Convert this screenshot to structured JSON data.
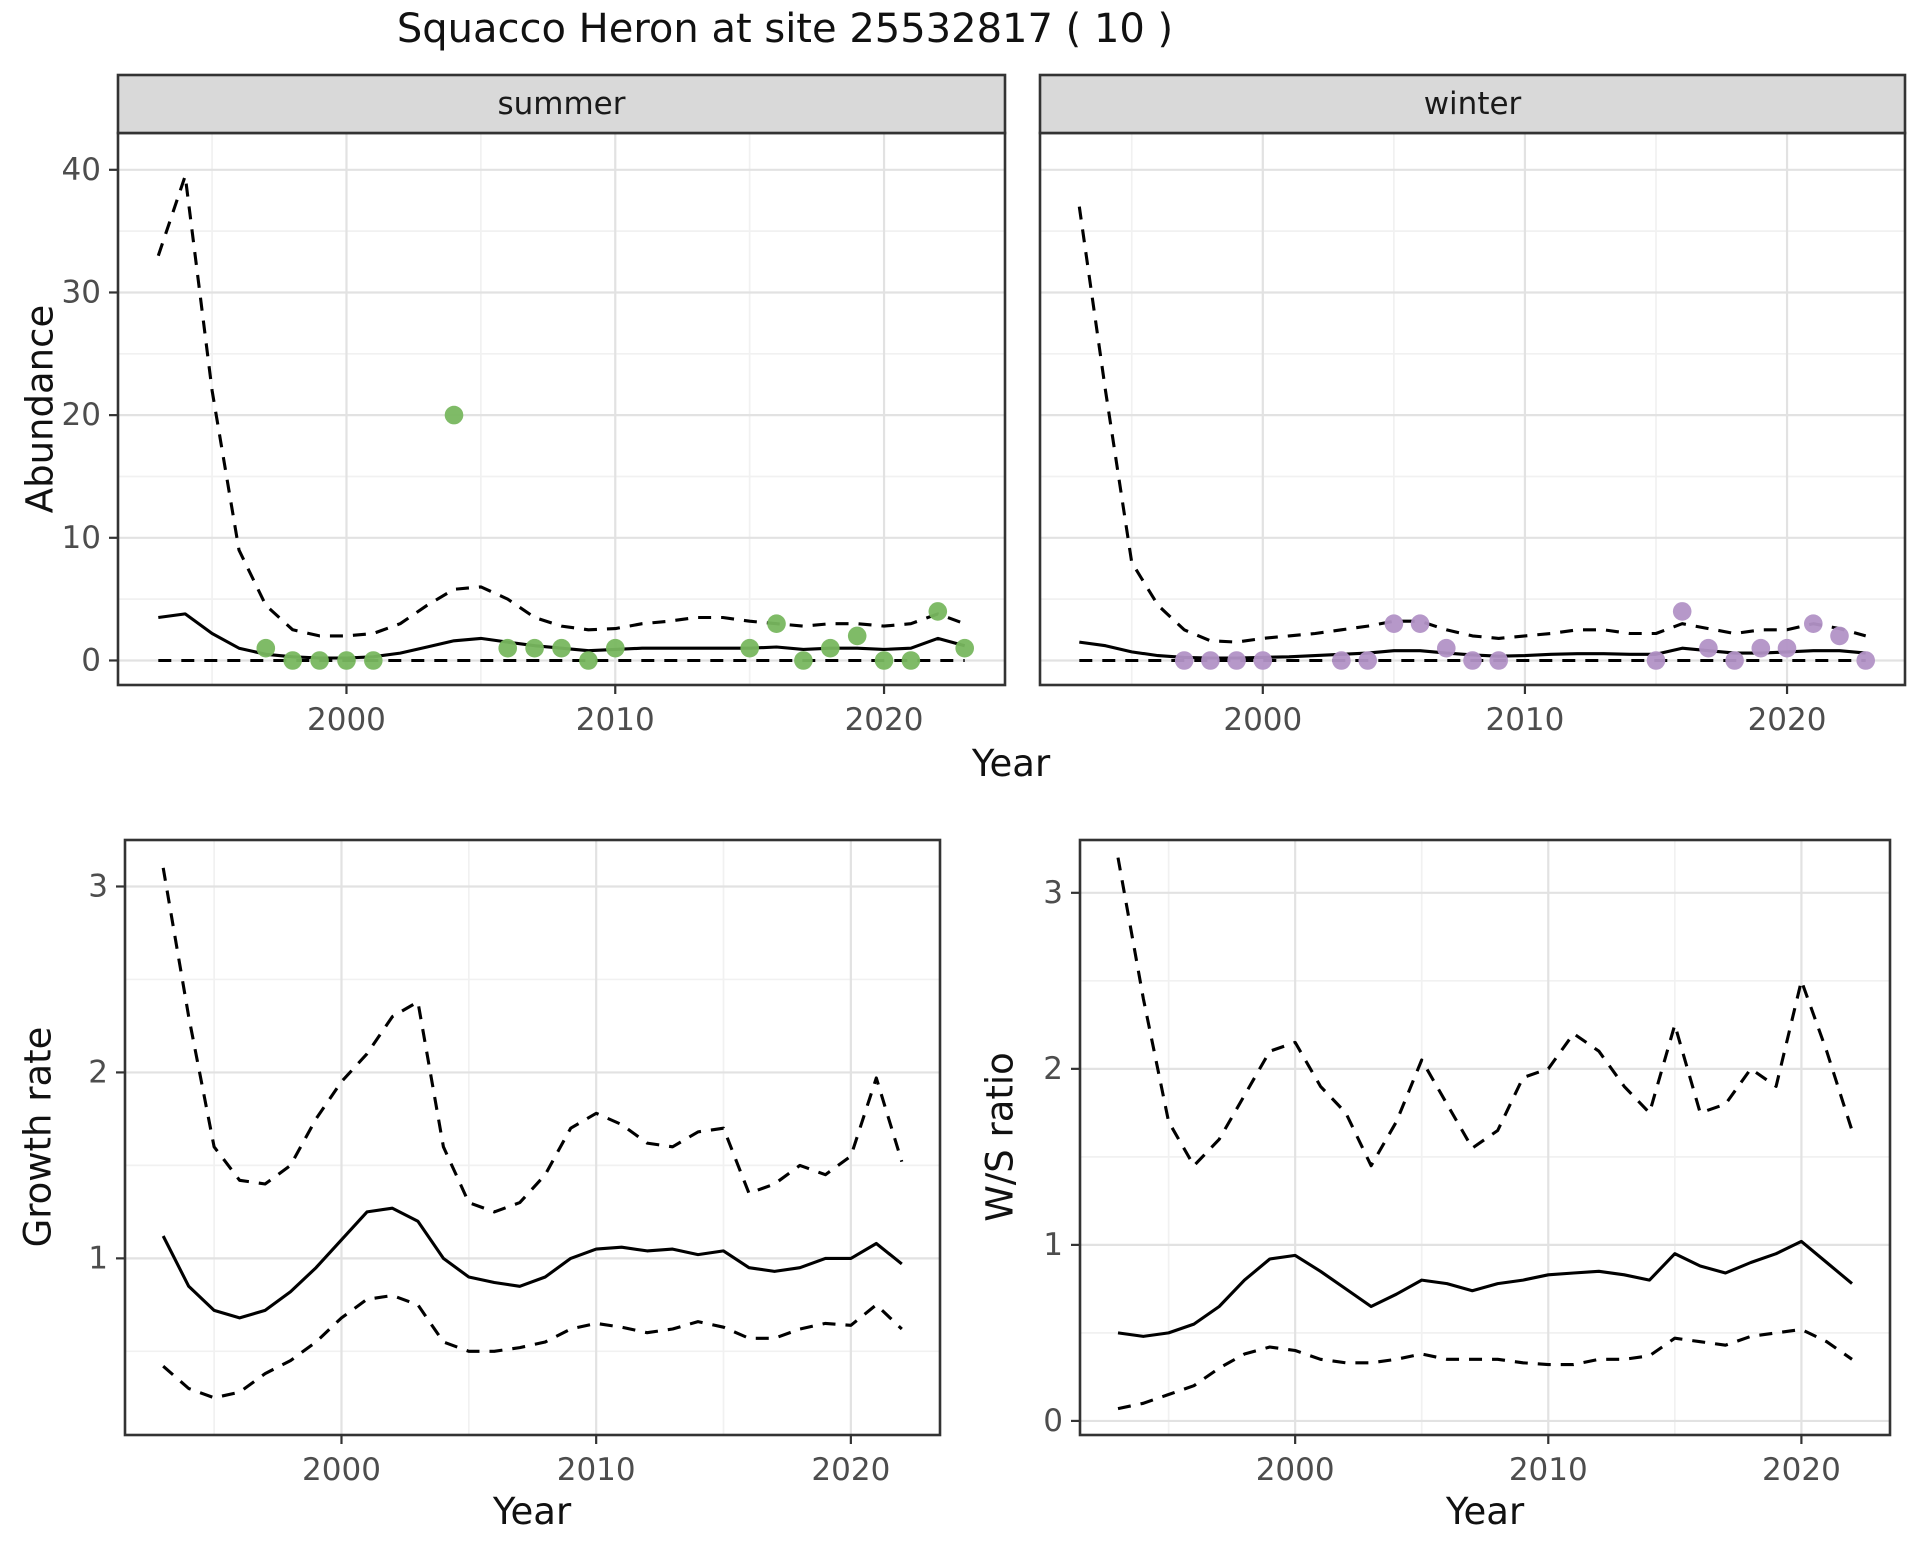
{
  "labels": {
    "title": "Squacco Heron at site 25532817 ( 10 )",
    "xlabel_top": "Year",
    "xlabel_growth": "Year",
    "xlabel_ws": "Year",
    "ylabel_abundance": "Abundance",
    "ylabel_growth": "Growth rate",
    "ylabel_ws": "W/S ratio",
    "facet_summer": "summer",
    "facet_winter": "winter"
  },
  "colors": {
    "summer_point": "#78b75f",
    "winter_point": "#b292c6",
    "line": "#000000",
    "strip_bg": "#d9d9d9",
    "strip_text": "#1a1a1a",
    "panel_border": "#333333",
    "grid_major": "#e2e2e2",
    "grid_minor": "#f1f1f1",
    "tick_text": "#4d4d4d",
    "tick_mark": "#333333"
  },
  "chart_data": [
    {
      "id": "abundance-summer",
      "type": "line",
      "facet_label": "summer",
      "xlabel": "Year",
      "ylabel": "Abundance",
      "xlim": [
        1991.5,
        2024.5
      ],
      "ylim": [
        -2,
        43
      ],
      "xticks": [
        2000,
        2010,
        2020
      ],
      "yticks": [
        0,
        10,
        20,
        30,
        40
      ],
      "xminor": [
        1995,
        2005,
        2015
      ],
      "yminor": [
        5,
        15,
        25,
        35
      ],
      "years": [
        1993,
        1994,
        1995,
        1996,
        1997,
        1998,
        1999,
        2000,
        2001,
        2002,
        2003,
        2004,
        2005,
        2006,
        2007,
        2008,
        2009,
        2010,
        2011,
        2012,
        2013,
        2014,
        2015,
        2016,
        2017,
        2018,
        2019,
        2020,
        2021,
        2022,
        2023
      ],
      "series": [
        {
          "name": "upper_ci",
          "style": "dashed",
          "values": [
            33,
            39.5,
            22,
            9,
            4.5,
            2.5,
            2,
            2,
            2.2,
            3,
            4.5,
            5.8,
            6,
            5,
            3.5,
            2.8,
            2.5,
            2.6,
            3,
            3.2,
            3.5,
            3.5,
            3.2,
            3,
            2.8,
            3,
            3,
            2.8,
            3,
            3.8,
            3
          ]
        },
        {
          "name": "lower_ci",
          "style": "dashed",
          "values": [
            0,
            0,
            0,
            0,
            0,
            0,
            0,
            0,
            0,
            0,
            0,
            0,
            0,
            0,
            0,
            0,
            0,
            0,
            0,
            0,
            0,
            0,
            0,
            0,
            0,
            0,
            0,
            0,
            0,
            0,
            0
          ]
        },
        {
          "name": "median",
          "style": "solid",
          "values": [
            3.5,
            3.8,
            2.2,
            1,
            0.5,
            0.3,
            0.2,
            0.2,
            0.3,
            0.6,
            1.1,
            1.6,
            1.8,
            1.5,
            1.2,
            1,
            0.8,
            0.9,
            1,
            1,
            1,
            1,
            1,
            1.1,
            0.9,
            1,
            1,
            0.9,
            1,
            1.8,
            1.2
          ]
        }
      ],
      "points": {
        "color_key": "summer_point",
        "xy": [
          [
            1997,
            1
          ],
          [
            1998,
            0
          ],
          [
            1999,
            0
          ],
          [
            2000,
            0
          ],
          [
            2001,
            0
          ],
          [
            2004,
            20
          ],
          [
            2006,
            1
          ],
          [
            2007,
            1
          ],
          [
            2008,
            1
          ],
          [
            2009,
            0
          ],
          [
            2010,
            1
          ],
          [
            2015,
            1
          ],
          [
            2016,
            3
          ],
          [
            2017,
            0
          ],
          [
            2018,
            1
          ],
          [
            2019,
            2
          ],
          [
            2020,
            0
          ],
          [
            2021,
            0
          ],
          [
            2022,
            4
          ],
          [
            2023,
            1
          ]
        ]
      }
    },
    {
      "id": "abundance-winter",
      "type": "line",
      "facet_label": "winter",
      "xlabel": "Year",
      "ylabel": "",
      "xlim": [
        1991.5,
        2024.5
      ],
      "ylim": [
        -2,
        43
      ],
      "xticks": [
        2000,
        2010,
        2020
      ],
      "yticks": [
        0,
        10,
        20,
        30,
        40
      ],
      "xminor": [
        1995,
        2005,
        2015
      ],
      "yminor": [
        5,
        15,
        25,
        35
      ],
      "years": [
        1993,
        1994,
        1995,
        1996,
        1997,
        1998,
        1999,
        2000,
        2001,
        2002,
        2003,
        2004,
        2005,
        2006,
        2007,
        2008,
        2009,
        2010,
        2011,
        2012,
        2013,
        2014,
        2015,
        2016,
        2017,
        2018,
        2019,
        2020,
        2021,
        2022,
        2023
      ],
      "series": [
        {
          "name": "upper_ci",
          "style": "dashed",
          "values": [
            37,
            22,
            8,
            4.5,
            2.5,
            1.6,
            1.5,
            1.8,
            2,
            2.2,
            2.5,
            2.8,
            3.2,
            3.2,
            2.5,
            2,
            1.8,
            2,
            2.2,
            2.5,
            2.5,
            2.2,
            2.2,
            3,
            2.6,
            2.2,
            2.5,
            2.5,
            3,
            2.6,
            2
          ]
        },
        {
          "name": "lower_ci",
          "style": "dashed",
          "values": [
            0,
            0,
            0,
            0,
            0,
            0,
            0,
            0,
            0,
            0,
            0,
            0,
            0,
            0,
            0,
            0,
            0,
            0,
            0,
            0,
            0,
            0,
            0,
            0,
            0,
            0,
            0,
            0,
            0,
            0,
            0
          ]
        },
        {
          "name": "median",
          "style": "solid",
          "values": [
            1.5,
            1.2,
            0.7,
            0.4,
            0.25,
            0.2,
            0.2,
            0.25,
            0.3,
            0.4,
            0.5,
            0.6,
            0.8,
            0.8,
            0.6,
            0.45,
            0.35,
            0.4,
            0.5,
            0.55,
            0.55,
            0.5,
            0.5,
            1,
            0.8,
            0.6,
            0.6,
            0.7,
            0.8,
            0.8,
            0.6
          ]
        }
      ],
      "points": {
        "color_key": "winter_point",
        "xy": [
          [
            1997,
            0
          ],
          [
            1998,
            0
          ],
          [
            1999,
            0
          ],
          [
            2000,
            0
          ],
          [
            2003,
            0
          ],
          [
            2004,
            0
          ],
          [
            2005,
            3
          ],
          [
            2006,
            3
          ],
          [
            2007,
            1
          ],
          [
            2008,
            0
          ],
          [
            2009,
            0
          ],
          [
            2015,
            0
          ],
          [
            2016,
            4
          ],
          [
            2017,
            1
          ],
          [
            2018,
            0
          ],
          [
            2019,
            1
          ],
          [
            2020,
            1
          ],
          [
            2021,
            3
          ],
          [
            2022,
            2
          ],
          [
            2023,
            0
          ]
        ]
      }
    },
    {
      "id": "growth-rate",
      "type": "line",
      "facet_label": "",
      "xlabel": "Year",
      "ylabel": "Growth rate",
      "xlim": [
        1991.5,
        2023.5
      ],
      "ylim": [
        0.05,
        3.25
      ],
      "xticks": [
        2000,
        2010,
        2020
      ],
      "yticks": [
        1,
        2,
        3
      ],
      "xminor": [
        1995,
        2005,
        2015
      ],
      "yminor": [
        0.5,
        1.5,
        2.5
      ],
      "years": [
        1993,
        1994,
        1995,
        1996,
        1997,
        1998,
        1999,
        2000,
        2001,
        2002,
        2003,
        2004,
        2005,
        2006,
        2007,
        2008,
        2009,
        2010,
        2011,
        2012,
        2013,
        2014,
        2015,
        2016,
        2017,
        2018,
        2019,
        2020,
        2021,
        2022
      ],
      "series": [
        {
          "name": "upper_ci",
          "style": "dashed",
          "values": [
            3.1,
            2.3,
            1.6,
            1.42,
            1.4,
            1.5,
            1.75,
            1.95,
            2.1,
            2.3,
            2.38,
            1.6,
            1.3,
            1.25,
            1.3,
            1.45,
            1.7,
            1.78,
            1.72,
            1.62,
            1.6,
            1.68,
            1.7,
            1.35,
            1.4,
            1.5,
            1.45,
            1.55,
            1.97,
            1.52
          ]
        },
        {
          "name": "lower_ci",
          "style": "dashed",
          "values": [
            0.42,
            0.3,
            0.25,
            0.28,
            0.38,
            0.45,
            0.55,
            0.68,
            0.78,
            0.8,
            0.75,
            0.55,
            0.5,
            0.5,
            0.52,
            0.55,
            0.62,
            0.65,
            0.63,
            0.6,
            0.62,
            0.66,
            0.63,
            0.57,
            0.57,
            0.62,
            0.65,
            0.64,
            0.75,
            0.62
          ]
        },
        {
          "name": "median",
          "style": "solid",
          "values": [
            1.12,
            0.85,
            0.72,
            0.68,
            0.72,
            0.82,
            0.95,
            1.1,
            1.25,
            1.27,
            1.2,
            1,
            0.9,
            0.87,
            0.85,
            0.9,
            1,
            1.05,
            1.06,
            1.04,
            1.05,
            1.02,
            1.04,
            0.95,
            0.93,
            0.95,
            1,
            1,
            1.08,
            0.97
          ]
        }
      ]
    },
    {
      "id": "ws-ratio",
      "type": "line",
      "facet_label": "",
      "xlabel": "Year",
      "ylabel": "W/S ratio",
      "xlim": [
        1991.5,
        2023.5
      ],
      "ylim": [
        -0.08,
        3.3
      ],
      "xticks": [
        2000,
        2010,
        2020
      ],
      "yticks": [
        0,
        1,
        2,
        3
      ],
      "xminor": [
        1995,
        2005,
        2015
      ],
      "yminor": [
        0.5,
        1.5,
        2.5
      ],
      "years": [
        1993,
        1994,
        1995,
        1996,
        1997,
        1998,
        1999,
        2000,
        2001,
        2002,
        2003,
        2004,
        2005,
        2006,
        2007,
        2008,
        2009,
        2010,
        2011,
        2012,
        2013,
        2014,
        2015,
        2016,
        2017,
        2018,
        2019,
        2020,
        2021,
        2022
      ],
      "series": [
        {
          "name": "upper_ci",
          "style": "dashed",
          "values": [
            3.2,
            2.4,
            1.7,
            1.45,
            1.6,
            1.85,
            2.1,
            2.15,
            1.9,
            1.75,
            1.45,
            1.7,
            2.05,
            1.8,
            1.55,
            1.65,
            1.95,
            2,
            2.2,
            2.1,
            1.9,
            1.75,
            2.25,
            1.75,
            1.8,
            2,
            1.9,
            2.5,
            2.1,
            1.65
          ]
        },
        {
          "name": "lower_ci",
          "style": "dashed",
          "values": [
            0.07,
            0.1,
            0.15,
            0.2,
            0.3,
            0.38,
            0.42,
            0.4,
            0.35,
            0.33,
            0.33,
            0.35,
            0.38,
            0.35,
            0.35,
            0.35,
            0.33,
            0.32,
            0.32,
            0.35,
            0.35,
            0.37,
            0.47,
            0.45,
            0.43,
            0.48,
            0.5,
            0.52,
            0.45,
            0.35
          ]
        },
        {
          "name": "median",
          "style": "solid",
          "values": [
            0.5,
            0.48,
            0.5,
            0.55,
            0.65,
            0.8,
            0.92,
            0.94,
            0.85,
            0.75,
            0.65,
            0.72,
            0.8,
            0.78,
            0.74,
            0.78,
            0.8,
            0.83,
            0.84,
            0.85,
            0.83,
            0.8,
            0.95,
            0.88,
            0.84,
            0.9,
            0.95,
            1.02,
            0.9,
            0.78
          ]
        }
      ]
    }
  ]
}
